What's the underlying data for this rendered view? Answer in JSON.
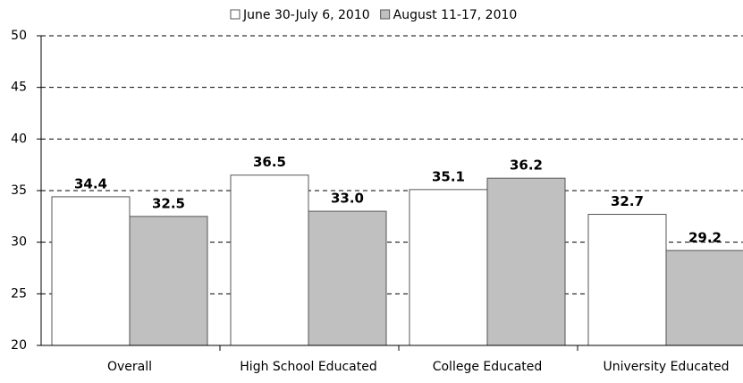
{
  "chart_data": {
    "type": "bar",
    "categories": [
      "Overall",
      "High School Educated",
      "College Educated",
      "University Educated"
    ],
    "series": [
      {
        "name": "June 30-July 6, 2010",
        "color": "#ffffff",
        "values": [
          34.4,
          36.5,
          35.1,
          32.7
        ],
        "value_labels": [
          "34.4",
          "36.5",
          "35.1",
          "32.7"
        ]
      },
      {
        "name": "August 11-17, 2010",
        "color": "#c0c0c0",
        "values": [
          32.5,
          33.0,
          36.2,
          29.2
        ],
        "value_labels": [
          "32.5",
          "33.0",
          "36.2",
          "29.2"
        ]
      }
    ],
    "ylim": [
      20,
      50
    ],
    "yticks": [
      20,
      25,
      30,
      35,
      40,
      45,
      50
    ],
    "grid": true,
    "legend": "top"
  }
}
